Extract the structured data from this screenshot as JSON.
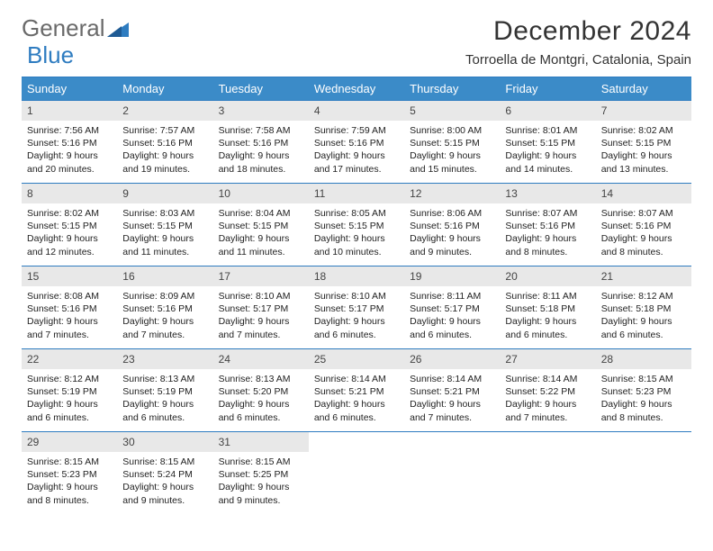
{
  "brand": {
    "name_part1": "General",
    "name_part2": "Blue"
  },
  "title": "December 2024",
  "location": "Torroella de Montgri, Catalonia, Spain",
  "colors": {
    "header_bg": "#3b8bc8",
    "header_border": "#2e7cc0",
    "daynum_bg": "#e8e8e8",
    "logo_gray": "#6a6a6a",
    "logo_blue": "#2e7cc0"
  },
  "weekdays": [
    "Sunday",
    "Monday",
    "Tuesday",
    "Wednesday",
    "Thursday",
    "Friday",
    "Saturday"
  ],
  "weeks": [
    [
      {
        "n": "1",
        "sunrise": "Sunrise: 7:56 AM",
        "sunset": "Sunset: 5:16 PM",
        "d1": "Daylight: 9 hours",
        "d2": "and 20 minutes."
      },
      {
        "n": "2",
        "sunrise": "Sunrise: 7:57 AM",
        "sunset": "Sunset: 5:16 PM",
        "d1": "Daylight: 9 hours",
        "d2": "and 19 minutes."
      },
      {
        "n": "3",
        "sunrise": "Sunrise: 7:58 AM",
        "sunset": "Sunset: 5:16 PM",
        "d1": "Daylight: 9 hours",
        "d2": "and 18 minutes."
      },
      {
        "n": "4",
        "sunrise": "Sunrise: 7:59 AM",
        "sunset": "Sunset: 5:16 PM",
        "d1": "Daylight: 9 hours",
        "d2": "and 17 minutes."
      },
      {
        "n": "5",
        "sunrise": "Sunrise: 8:00 AM",
        "sunset": "Sunset: 5:15 PM",
        "d1": "Daylight: 9 hours",
        "d2": "and 15 minutes."
      },
      {
        "n": "6",
        "sunrise": "Sunrise: 8:01 AM",
        "sunset": "Sunset: 5:15 PM",
        "d1": "Daylight: 9 hours",
        "d2": "and 14 minutes."
      },
      {
        "n": "7",
        "sunrise": "Sunrise: 8:02 AM",
        "sunset": "Sunset: 5:15 PM",
        "d1": "Daylight: 9 hours",
        "d2": "and 13 minutes."
      }
    ],
    [
      {
        "n": "8",
        "sunrise": "Sunrise: 8:02 AM",
        "sunset": "Sunset: 5:15 PM",
        "d1": "Daylight: 9 hours",
        "d2": "and 12 minutes."
      },
      {
        "n": "9",
        "sunrise": "Sunrise: 8:03 AM",
        "sunset": "Sunset: 5:15 PM",
        "d1": "Daylight: 9 hours",
        "d2": "and 11 minutes."
      },
      {
        "n": "10",
        "sunrise": "Sunrise: 8:04 AM",
        "sunset": "Sunset: 5:15 PM",
        "d1": "Daylight: 9 hours",
        "d2": "and 11 minutes."
      },
      {
        "n": "11",
        "sunrise": "Sunrise: 8:05 AM",
        "sunset": "Sunset: 5:15 PM",
        "d1": "Daylight: 9 hours",
        "d2": "and 10 minutes."
      },
      {
        "n": "12",
        "sunrise": "Sunrise: 8:06 AM",
        "sunset": "Sunset: 5:16 PM",
        "d1": "Daylight: 9 hours",
        "d2": "and 9 minutes."
      },
      {
        "n": "13",
        "sunrise": "Sunrise: 8:07 AM",
        "sunset": "Sunset: 5:16 PM",
        "d1": "Daylight: 9 hours",
        "d2": "and 8 minutes."
      },
      {
        "n": "14",
        "sunrise": "Sunrise: 8:07 AM",
        "sunset": "Sunset: 5:16 PM",
        "d1": "Daylight: 9 hours",
        "d2": "and 8 minutes."
      }
    ],
    [
      {
        "n": "15",
        "sunrise": "Sunrise: 8:08 AM",
        "sunset": "Sunset: 5:16 PM",
        "d1": "Daylight: 9 hours",
        "d2": "and 7 minutes."
      },
      {
        "n": "16",
        "sunrise": "Sunrise: 8:09 AM",
        "sunset": "Sunset: 5:16 PM",
        "d1": "Daylight: 9 hours",
        "d2": "and 7 minutes."
      },
      {
        "n": "17",
        "sunrise": "Sunrise: 8:10 AM",
        "sunset": "Sunset: 5:17 PM",
        "d1": "Daylight: 9 hours",
        "d2": "and 7 minutes."
      },
      {
        "n": "18",
        "sunrise": "Sunrise: 8:10 AM",
        "sunset": "Sunset: 5:17 PM",
        "d1": "Daylight: 9 hours",
        "d2": "and 6 minutes."
      },
      {
        "n": "19",
        "sunrise": "Sunrise: 8:11 AM",
        "sunset": "Sunset: 5:17 PM",
        "d1": "Daylight: 9 hours",
        "d2": "and 6 minutes."
      },
      {
        "n": "20",
        "sunrise": "Sunrise: 8:11 AM",
        "sunset": "Sunset: 5:18 PM",
        "d1": "Daylight: 9 hours",
        "d2": "and 6 minutes."
      },
      {
        "n": "21",
        "sunrise": "Sunrise: 8:12 AM",
        "sunset": "Sunset: 5:18 PM",
        "d1": "Daylight: 9 hours",
        "d2": "and 6 minutes."
      }
    ],
    [
      {
        "n": "22",
        "sunrise": "Sunrise: 8:12 AM",
        "sunset": "Sunset: 5:19 PM",
        "d1": "Daylight: 9 hours",
        "d2": "and 6 minutes."
      },
      {
        "n": "23",
        "sunrise": "Sunrise: 8:13 AM",
        "sunset": "Sunset: 5:19 PM",
        "d1": "Daylight: 9 hours",
        "d2": "and 6 minutes."
      },
      {
        "n": "24",
        "sunrise": "Sunrise: 8:13 AM",
        "sunset": "Sunset: 5:20 PM",
        "d1": "Daylight: 9 hours",
        "d2": "and 6 minutes."
      },
      {
        "n": "25",
        "sunrise": "Sunrise: 8:14 AM",
        "sunset": "Sunset: 5:21 PM",
        "d1": "Daylight: 9 hours",
        "d2": "and 6 minutes."
      },
      {
        "n": "26",
        "sunrise": "Sunrise: 8:14 AM",
        "sunset": "Sunset: 5:21 PM",
        "d1": "Daylight: 9 hours",
        "d2": "and 7 minutes."
      },
      {
        "n": "27",
        "sunrise": "Sunrise: 8:14 AM",
        "sunset": "Sunset: 5:22 PM",
        "d1": "Daylight: 9 hours",
        "d2": "and 7 minutes."
      },
      {
        "n": "28",
        "sunrise": "Sunrise: 8:15 AM",
        "sunset": "Sunset: 5:23 PM",
        "d1": "Daylight: 9 hours",
        "d2": "and 8 minutes."
      }
    ],
    [
      {
        "n": "29",
        "sunrise": "Sunrise: 8:15 AM",
        "sunset": "Sunset: 5:23 PM",
        "d1": "Daylight: 9 hours",
        "d2": "and 8 minutes."
      },
      {
        "n": "30",
        "sunrise": "Sunrise: 8:15 AM",
        "sunset": "Sunset: 5:24 PM",
        "d1": "Daylight: 9 hours",
        "d2": "and 9 minutes."
      },
      {
        "n": "31",
        "sunrise": "Sunrise: 8:15 AM",
        "sunset": "Sunset: 5:25 PM",
        "d1": "Daylight: 9 hours",
        "d2": "and 9 minutes."
      },
      null,
      null,
      null,
      null
    ]
  ]
}
